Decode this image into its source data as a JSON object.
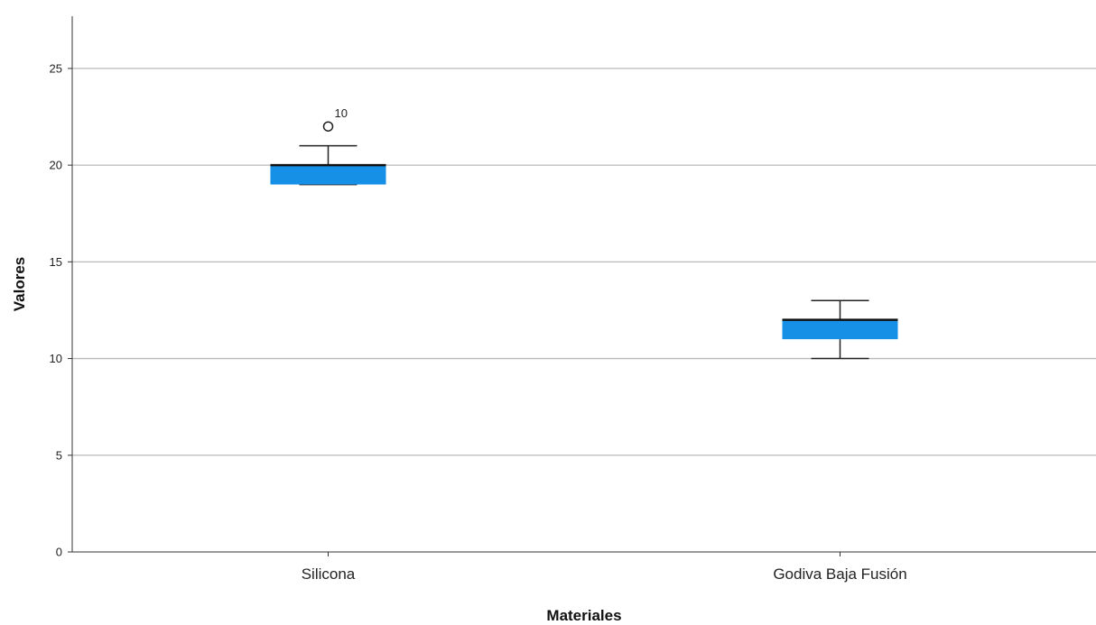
{
  "chart_data": {
    "type": "boxplot",
    "xlabel": "Materiales",
    "ylabel": "Valores",
    "ylim": [
      0,
      27.7
    ],
    "yticks": [
      0,
      5,
      10,
      15,
      20,
      25
    ],
    "grid": true,
    "colors": {
      "box": "#1590e6",
      "grid": "#b9b9b9",
      "axis": "#333333"
    },
    "series": [
      {
        "category": "Silicona",
        "min": 19,
        "q1": 19,
        "median": 20,
        "q3": 20,
        "max": 21,
        "outliers": [
          {
            "value": 22,
            "label": "10"
          }
        ]
      },
      {
        "category": "Godiva Baja Fusión",
        "min": 10,
        "q1": 11,
        "median": 12,
        "q3": 12,
        "max": 13,
        "outliers": []
      }
    ]
  }
}
